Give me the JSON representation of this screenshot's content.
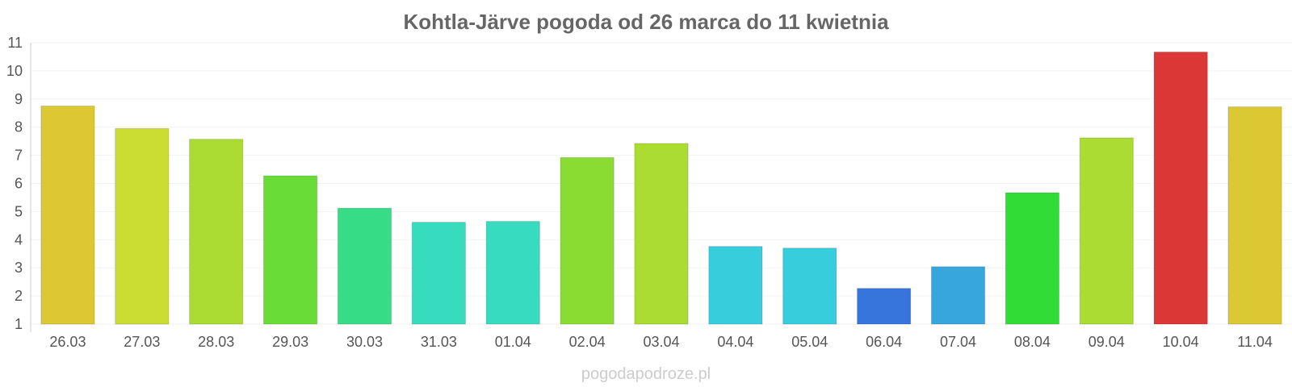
{
  "chart_data": {
    "type": "bar",
    "title": "Kohtla-Järve pogoda od 26 marca do 11 kwietnia",
    "categories": [
      "26.03",
      "27.03",
      "28.03",
      "29.03",
      "30.03",
      "31.03",
      "01.04",
      "02.04",
      "03.04",
      "04.04",
      "05.04",
      "06.04",
      "07.04",
      "08.04",
      "09.04",
      "10.04",
      "11.04"
    ],
    "values": [
      8.75,
      7.95,
      7.57,
      6.27,
      5.12,
      4.62,
      4.65,
      6.92,
      7.42,
      3.76,
      3.7,
      2.27,
      3.04,
      5.67,
      7.62,
      10.67,
      8.72
    ],
    "colors": [
      "#dbc832",
      "#cbdc32",
      "#aadc32",
      "#69dc37",
      "#37dc87",
      "#37dcbe",
      "#37dcbe",
      "#8adc32",
      "#aadc32",
      "#37cddc",
      "#37cddc",
      "#3775dc",
      "#37a6dc",
      "#32dc37",
      "#aadc32",
      "#dc3737",
      "#dbc832"
    ],
    "ylim": [
      1,
      11
    ],
    "yticks": [
      1,
      2,
      3,
      4,
      5,
      6,
      7,
      8,
      9,
      10,
      11
    ],
    "grid": true,
    "legend": "none",
    "xlabel": "",
    "ylabel": ""
  },
  "watermark": "pogodapodroze.pl"
}
